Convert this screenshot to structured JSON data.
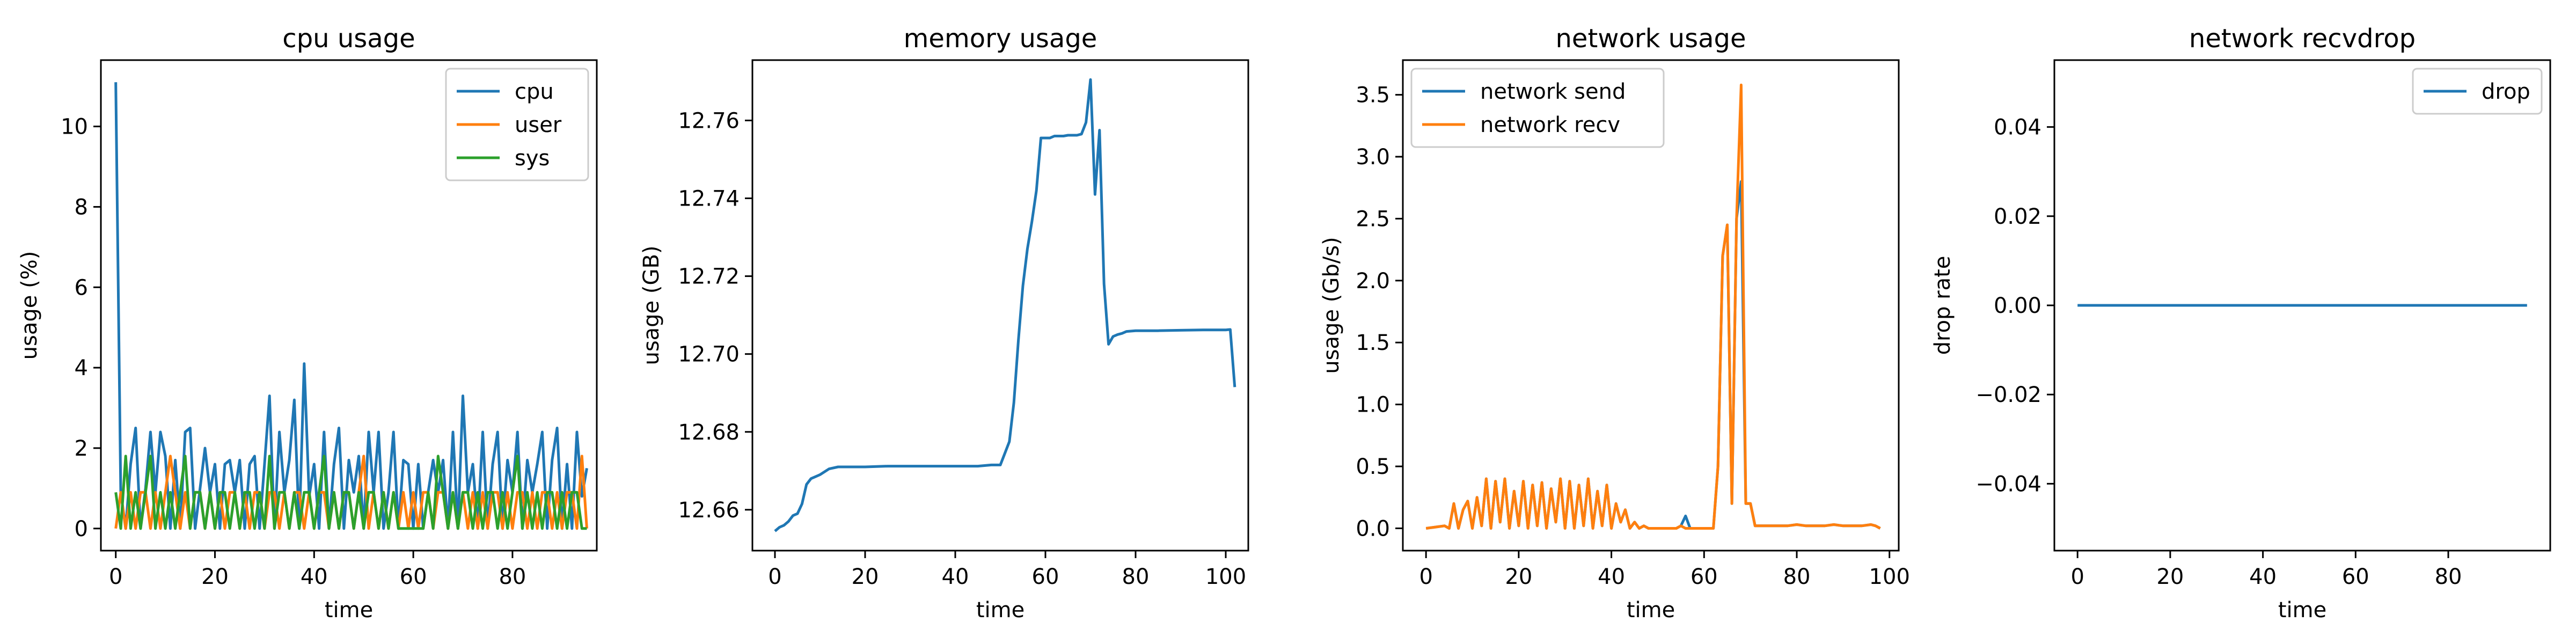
{
  "chart_data": [
    {
      "type": "line",
      "title": "cpu usage",
      "xlabel": "time",
      "ylabel": "usage (%)",
      "xlim": [
        -3,
        97
      ],
      "ylim": [
        -0.55,
        11.65
      ],
      "xticks": [
        0,
        20,
        40,
        60,
        80
      ],
      "yticks": [
        0,
        2,
        4,
        6,
        8,
        10
      ],
      "ytick_labels": [
        "0",
        "2",
        "4",
        "6",
        "8",
        "10"
      ],
      "grid": false,
      "legend": "top-right",
      "series": [
        {
          "name": "cpu",
          "color": "#1f77b4",
          "x": [
            0,
            1,
            2,
            3,
            4,
            5,
            6,
            7,
            8,
            9,
            10,
            11,
            12,
            13,
            14,
            15,
            16,
            17,
            18,
            19,
            20,
            21,
            22,
            23,
            24,
            25,
            26,
            27,
            28,
            29,
            30,
            31,
            32,
            33,
            34,
            35,
            36,
            37,
            38,
            39,
            40,
            41,
            42,
            43,
            44,
            45,
            46,
            47,
            48,
            49,
            50,
            51,
            52,
            53,
            54,
            55,
            56,
            57,
            58,
            59,
            60,
            61,
            62,
            63,
            64,
            65,
            66,
            67,
            68,
            69,
            70,
            71,
            72,
            73,
            74,
            75,
            76,
            77,
            78,
            79,
            80,
            81,
            82,
            83,
            84,
            85,
            86,
            87,
            88,
            89,
            90,
            91,
            92,
            93,
            94,
            95
          ],
          "y": [
            11.1,
            0.9,
            0,
            1.6,
            2.5,
            0,
            1.0,
            2.4,
            0.9,
            2.4,
            1.8,
            0,
            1.7,
            0,
            2.4,
            2.5,
            0,
            1.0,
            2.0,
            0.9,
            1.6,
            0,
            1.6,
            1.7,
            0.9,
            1.7,
            0,
            1.6,
            1.8,
            0,
            1.6,
            3.3,
            0,
            2.4,
            0.9,
            1.7,
            3.2,
            0,
            4.1,
            0.8,
            1.6,
            0,
            2.4,
            0,
            1.6,
            2.5,
            0,
            1.7,
            0.9,
            1.8,
            0,
            2.4,
            0.9,
            2.4,
            0,
            0.9,
            2.4,
            0,
            1.7,
            1.6,
            0,
            1.6,
            0,
            0.9,
            1.7,
            0.9,
            1.7,
            0,
            2.4,
            0,
            3.3,
            0.9,
            1.6,
            0,
            2.4,
            0,
            1.6,
            2.4,
            0,
            1.7,
            0.9,
            2.4,
            0,
            1.7,
            0.9,
            1.6,
            2.4,
            0,
            1.7,
            2.5,
            0,
            1.6,
            0,
            2.4,
            0.8,
            1.5
          ]
        },
        {
          "name": "user",
          "color": "#ff7f0e",
          "x": [
            0,
            1,
            2,
            3,
            4,
            5,
            6,
            7,
            8,
            9,
            10,
            11,
            12,
            13,
            14,
            15,
            16,
            17,
            18,
            19,
            20,
            21,
            22,
            23,
            24,
            25,
            26,
            27,
            28,
            29,
            30,
            31,
            32,
            33,
            34,
            35,
            36,
            37,
            38,
            39,
            40,
            41,
            42,
            43,
            44,
            45,
            46,
            47,
            48,
            49,
            50,
            51,
            52,
            53,
            54,
            55,
            56,
            57,
            58,
            59,
            60,
            61,
            62,
            63,
            64,
            65,
            66,
            67,
            68,
            69,
            70,
            71,
            72,
            73,
            74,
            75,
            76,
            77,
            78,
            79,
            80,
            81,
            82,
            83,
            84,
            85,
            86,
            87,
            88,
            89,
            90,
            91,
            92,
            93,
            94,
            95
          ],
          "y": [
            0,
            0.9,
            0,
            0.9,
            0,
            0.9,
            0.9,
            0,
            0.9,
            0,
            0.9,
            1.8,
            0.9,
            0,
            0.9,
            0,
            0.9,
            0.9,
            0,
            0.9,
            0,
            0.9,
            0,
            0.9,
            0.9,
            0,
            0.9,
            0,
            0.9,
            0.9,
            0,
            0.9,
            0.9,
            0,
            0.9,
            0,
            0.9,
            0.9,
            0,
            0.9,
            0,
            0.9,
            0.9,
            0,
            0.9,
            0,
            0.9,
            0.9,
            0,
            0.9,
            1.8,
            0,
            0.9,
            0,
            0.9,
            0,
            0.9,
            0,
            0.9,
            0,
            0.9,
            0,
            0.9,
            0.9,
            0,
            0.9,
            0.9,
            0,
            0.9,
            0,
            0.9,
            0,
            0.9,
            0,
            0.9,
            0,
            0.9,
            0.9,
            0,
            0.9,
            0,
            0.9,
            0.9,
            0,
            0.9,
            0,
            0.9,
            0.9,
            0,
            0.9,
            0,
            0.9,
            0.9,
            0,
            1.8,
            0
          ]
        },
        {
          "name": "sys",
          "color": "#2ca02c",
          "x": [
            0,
            1,
            2,
            3,
            4,
            5,
            6,
            7,
            8,
            9,
            10,
            11,
            12,
            13,
            14,
            15,
            16,
            17,
            18,
            19,
            20,
            21,
            22,
            23,
            24,
            25,
            26,
            27,
            28,
            29,
            30,
            31,
            32,
            33,
            34,
            35,
            36,
            37,
            38,
            39,
            40,
            41,
            42,
            43,
            44,
            45,
            46,
            47,
            48,
            49,
            50,
            51,
            52,
            53,
            54,
            55,
            56,
            57,
            58,
            59,
            60,
            61,
            62,
            63,
            64,
            65,
            66,
            67,
            68,
            69,
            70,
            71,
            72,
            73,
            74,
            75,
            76,
            77,
            78,
            79,
            80,
            81,
            82,
            83,
            84,
            85,
            86,
            87,
            88,
            89,
            90,
            91,
            92,
            93,
            94,
            95
          ],
          "y": [
            0.9,
            0,
            1.8,
            0,
            0.9,
            0,
            0.9,
            1.8,
            0,
            0.9,
            0,
            0.9,
            0,
            0.9,
            1.8,
            0,
            0.9,
            0.9,
            0,
            0.9,
            0,
            0.9,
            0.9,
            0,
            0.9,
            0,
            0.9,
            0.9,
            0,
            0.9,
            0,
            1.8,
            0,
            0.9,
            0.9,
            0,
            0.9,
            0,
            0.9,
            0.9,
            0,
            0.9,
            1.8,
            0,
            0.9,
            0,
            0.9,
            0.9,
            0,
            0.9,
            0,
            0.9,
            0.9,
            0,
            0.9,
            0,
            0.9,
            0,
            0,
            0,
            0,
            0,
            0,
            0.9,
            0,
            1.8,
            0.9,
            0,
            0.9,
            0,
            0.9,
            0.9,
            0,
            0.9,
            0,
            0.9,
            0.9,
            0,
            0.9,
            0,
            0.9,
            1.8,
            0,
            0.9,
            0,
            0.9,
            0,
            0.9,
            0.9,
            0,
            0.9,
            0,
            0.9,
            0.9,
            0,
            0
          ]
        }
      ]
    },
    {
      "type": "line",
      "title": "memory usage",
      "xlabel": "time",
      "ylabel": "usage (GB)",
      "xlim": [
        -5,
        105
      ],
      "ylim": [
        12.6495,
        12.7755
      ],
      "xticks": [
        0,
        20,
        40,
        60,
        80,
        100
      ],
      "yticks": [
        12.66,
        12.68,
        12.7,
        12.72,
        12.74,
        12.76
      ],
      "ytick_labels": [
        "12.66",
        "12.68",
        "12.70",
        "12.72",
        "12.74",
        "12.76"
      ],
      "grid": false,
      "legend": "none",
      "series": [
        {
          "name": "",
          "color": "#1f77b4",
          "x": [
            0,
            1,
            2,
            3,
            4,
            5,
            6,
            7,
            8,
            9,
            10,
            12,
            14,
            16,
            20,
            25,
            30,
            35,
            40,
            45,
            48,
            50,
            51,
            52,
            53,
            54,
            55,
            56,
            57,
            58,
            59,
            60,
            61,
            62,
            63,
            64,
            65,
            66,
            67,
            68,
            69,
            70,
            71,
            72,
            73,
            74,
            75,
            76,
            77,
            78,
            80,
            85,
            90,
            95,
            100,
            101,
            102
          ],
          "y": [
            12.6545,
            12.6555,
            12.656,
            12.657,
            12.6585,
            12.659,
            12.6615,
            12.6665,
            12.668,
            12.6685,
            12.669,
            12.6705,
            12.671,
            12.671,
            12.671,
            12.6712,
            12.6712,
            12.6712,
            12.6712,
            12.6712,
            12.6715,
            12.6715,
            12.6745,
            12.6775,
            12.6875,
            12.7035,
            12.7175,
            12.727,
            12.734,
            12.742,
            12.7555,
            12.7555,
            12.7555,
            12.756,
            12.756,
            12.756,
            12.7562,
            12.7562,
            12.7562,
            12.7565,
            12.7595,
            12.7705,
            12.741,
            12.7575,
            12.718,
            12.7025,
            12.7045,
            12.705,
            12.7053,
            12.7058,
            12.706,
            12.706,
            12.7061,
            12.7062,
            12.7062,
            12.7063,
            12.6915
          ]
        }
      ]
    },
    {
      "type": "line",
      "title": "network usage",
      "xlabel": "time",
      "ylabel": "usage (Gb/s)",
      "xlim": [
        -5,
        102
      ],
      "ylim": [
        -0.18,
        3.78
      ],
      "xticks": [
        0,
        20,
        40,
        60,
        80,
        100
      ],
      "yticks": [
        0,
        0.5,
        1.0,
        1.5,
        2.0,
        2.5,
        3.0,
        3.5
      ],
      "ytick_labels": [
        "0.0",
        "0.5",
        "1.0",
        "1.5",
        "2.0",
        "2.5",
        "3.0",
        "3.5"
      ],
      "grid": false,
      "legend": "top-left",
      "series": [
        {
          "name": "network send",
          "color": "#1f77b4",
          "x": [
            0,
            4,
            5,
            6,
            7,
            8,
            9,
            10,
            11,
            12,
            13,
            14,
            15,
            16,
            17,
            18,
            19,
            20,
            21,
            22,
            23,
            24,
            25,
            26,
            27,
            28,
            29,
            30,
            31,
            32,
            33,
            34,
            35,
            36,
            37,
            38,
            39,
            40,
            41,
            42,
            43,
            44,
            45,
            46,
            47,
            48,
            50,
            54,
            55,
            56,
            57,
            58,
            62,
            63,
            64,
            65,
            66,
            67,
            68,
            69,
            70,
            71,
            72,
            74,
            76,
            78,
            80,
            82,
            84,
            86,
            88,
            90,
            92,
            94,
            96,
            97,
            98
          ],
          "y": [
            0,
            0.02,
            0,
            0.2,
            0,
            0.15,
            0.22,
            0,
            0.25,
            0.02,
            0.4,
            0,
            0.38,
            0.05,
            0.4,
            0,
            0.3,
            0.02,
            0.38,
            0,
            0.35,
            0.02,
            0.37,
            0,
            0.32,
            0.05,
            0.4,
            0,
            0.38,
            0,
            0.35,
            0.02,
            0.4,
            0,
            0.3,
            0.02,
            0.35,
            0,
            0.2,
            0.05,
            0.15,
            0,
            0.05,
            0,
            0.02,
            0,
            0,
            0,
            0.02,
            0.1,
            0,
            0,
            0,
            0.5,
            2.2,
            2.45,
            0.2,
            2.5,
            2.8,
            0.2,
            0.2,
            0.02,
            0.02,
            0.02,
            0.02,
            0.02,
            0.03,
            0.02,
            0.02,
            0.02,
            0.03,
            0.02,
            0.02,
            0.02,
            0.03,
            0.02,
            0
          ]
        },
        {
          "name": "network recv",
          "color": "#ff7f0e",
          "x": [
            0,
            4,
            5,
            6,
            7,
            8,
            9,
            10,
            11,
            12,
            13,
            14,
            15,
            16,
            17,
            18,
            19,
            20,
            21,
            22,
            23,
            24,
            25,
            26,
            27,
            28,
            29,
            30,
            31,
            32,
            33,
            34,
            35,
            36,
            37,
            38,
            39,
            40,
            41,
            42,
            43,
            44,
            45,
            46,
            47,
            48,
            50,
            54,
            55,
            56,
            57,
            58,
            62,
            63,
            64,
            65,
            66,
            67,
            68,
            69,
            70,
            71,
            72,
            74,
            76,
            78,
            80,
            82,
            84,
            86,
            88,
            90,
            92,
            94,
            96,
            97,
            98
          ],
          "y": [
            0,
            0.02,
            0,
            0.2,
            0,
            0.15,
            0.22,
            0,
            0.25,
            0.02,
            0.4,
            0,
            0.38,
            0.05,
            0.4,
            0,
            0.3,
            0.02,
            0.38,
            0,
            0.35,
            0.02,
            0.37,
            0,
            0.32,
            0.05,
            0.4,
            0,
            0.38,
            0,
            0.35,
            0.02,
            0.4,
            0,
            0.3,
            0.02,
            0.35,
            0,
            0.2,
            0.05,
            0.15,
            0,
            0.05,
            0,
            0.02,
            0,
            0,
            0,
            0.02,
            0,
            0,
            0,
            0,
            0.5,
            2.2,
            2.45,
            0.2,
            2.5,
            3.58,
            0.2,
            0.2,
            0.02,
            0.02,
            0.02,
            0.02,
            0.02,
            0.03,
            0.02,
            0.02,
            0.02,
            0.03,
            0.02,
            0.02,
            0.02,
            0.03,
            0.02,
            0
          ]
        }
      ]
    },
    {
      "type": "line",
      "title": "network recvdrop",
      "xlabel": "time",
      "ylabel": "drop rate",
      "xlim": [
        -5,
        102
      ],
      "ylim": [
        -0.055,
        0.055
      ],
      "xticks": [
        0,
        20,
        40,
        60,
        80
      ],
      "yticks": [
        -0.04,
        -0.02,
        0.0,
        0.02,
        0.04
      ],
      "ytick_labels": [
        "−0.04",
        "−0.02",
        "0.00",
        "0.02",
        "0.04"
      ],
      "grid": false,
      "legend": "top-right",
      "series": [
        {
          "name": "drop",
          "color": "#1f77b4",
          "x": [
            0,
            97
          ],
          "y": [
            0,
            0
          ]
        }
      ]
    }
  ]
}
